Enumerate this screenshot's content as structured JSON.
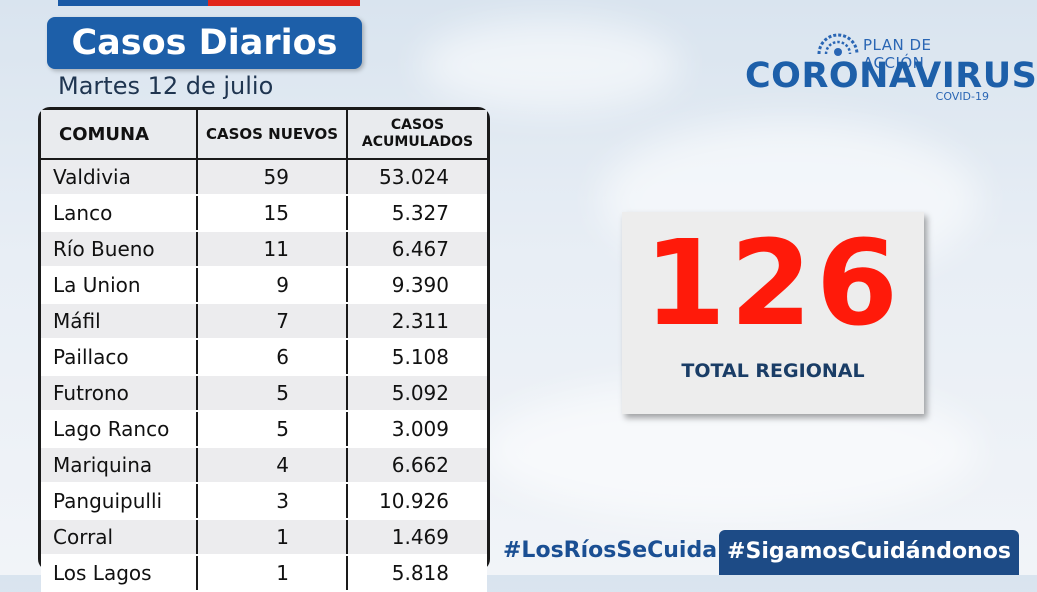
{
  "header": {
    "title": "Casos Diarios",
    "date": "Martes 12 de julio"
  },
  "table": {
    "headers": {
      "comuna": "COMUNA",
      "nuevos": "CASOS NUEVOS",
      "acum_line1": "CASOS",
      "acum_line2": "ACUMULADOS"
    },
    "rows": [
      {
        "comuna": "Valdivia",
        "nuevos": "59",
        "acumulados": "53.024"
      },
      {
        "comuna": "Lanco",
        "nuevos": "15",
        "acumulados": "5.327"
      },
      {
        "comuna": "Río Bueno",
        "nuevos": "11",
        "acumulados": "6.467"
      },
      {
        "comuna": "La Union",
        "nuevos": "9",
        "acumulados": "9.390"
      },
      {
        "comuna": "Máfil",
        "nuevos": "7",
        "acumulados": "2.311"
      },
      {
        "comuna": "Paillaco",
        "nuevos": "6",
        "acumulados": "5.108"
      },
      {
        "comuna": "Futrono",
        "nuevos": "5",
        "acumulados": "5.092"
      },
      {
        "comuna": "Lago Ranco",
        "nuevos": "5",
        "acumulados": "3.009"
      },
      {
        "comuna": "Mariquina",
        "nuevos": "4",
        "acumulados": "6.662"
      },
      {
        "comuna": "Panguipulli",
        "nuevos": "3",
        "acumulados": "10.926"
      },
      {
        "comuna": "Corral",
        "nuevos": "1",
        "acumulados": "1.469"
      },
      {
        "comuna": "Los Lagos",
        "nuevos": "1",
        "acumulados": "5.818"
      }
    ]
  },
  "logo": {
    "plan": "PLAN DE ACCIÓN",
    "name": "CORONAVIRUS",
    "sub": "COVID-19",
    "icon": "virus-icon"
  },
  "total": {
    "value": "126",
    "label": "TOTAL REGIONAL"
  },
  "footer": {
    "hashtag1": "#LosRíosSeCuida",
    "hashtag2": "#SigamosCuidándonos"
  },
  "colors": {
    "brand_blue": "#1d5fa9",
    "accent_red": "#ff1a0a",
    "dark_blue": "#1d4b86"
  }
}
